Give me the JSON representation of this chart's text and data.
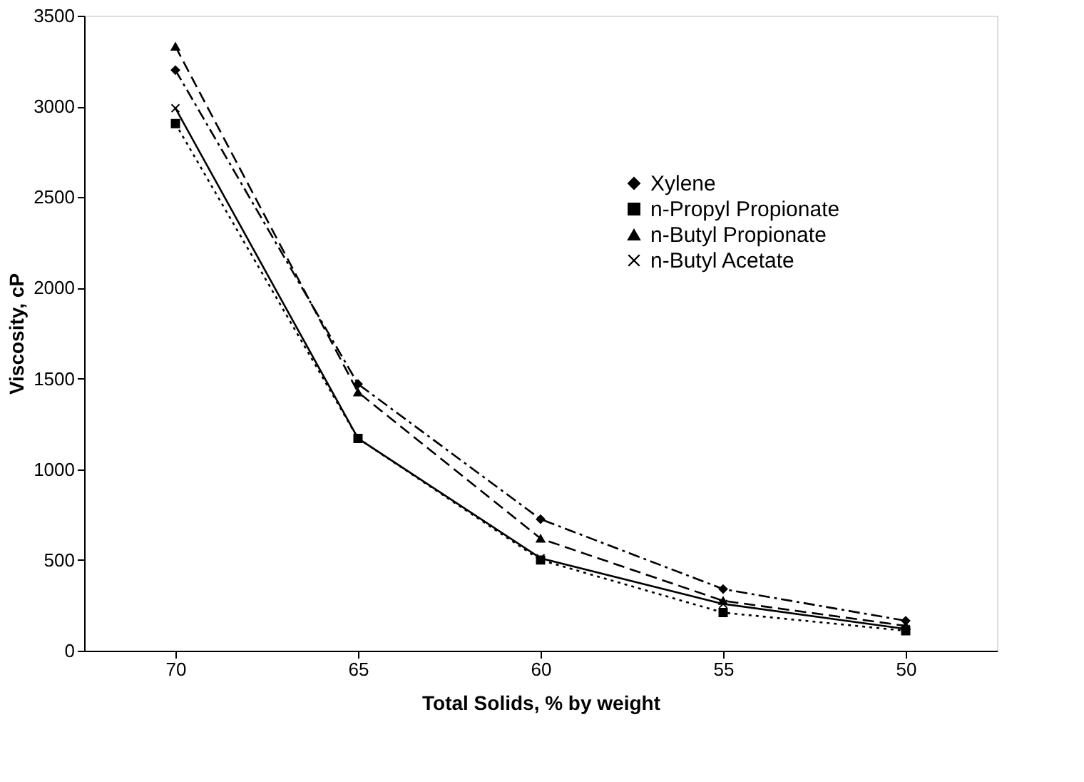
{
  "chart_data": {
    "type": "line",
    "xlabel": "Total Solids, % by weight",
    "ylabel": "Viscosity, cP",
    "categories": [
      "70",
      "65",
      "60",
      "55",
      "50"
    ],
    "series": [
      {
        "name": "Xylene",
        "color": "#000000",
        "marker": "diamond",
        "line_style": "dashdot",
        "values": [
          3200,
          1470,
          725,
          340,
          165
        ]
      },
      {
        "name": "n-Propyl Propionate",
        "color": "#000000",
        "marker": "square",
        "line_style": "dotted",
        "values": [
          2905,
          1170,
          500,
          210,
          110
        ]
      },
      {
        "name": "n-Butyl Propionate",
        "color": "#000000",
        "marker": "triangle",
        "line_style": "dashed",
        "values": [
          3330,
          1425,
          618,
          275,
          137
        ]
      },
      {
        "name": "n-Butyl Acetate",
        "color": "#000000",
        "marker": "cross",
        "line_style": "solid",
        "values": [
          2990,
          1170,
          510,
          258,
          120
        ]
      }
    ],
    "ylim": [
      0,
      3500
    ],
    "yticks": [
      0,
      500,
      1000,
      1500,
      2000,
      2500,
      3000,
      3500
    ],
    "grid": false,
    "legend": "top right"
  }
}
